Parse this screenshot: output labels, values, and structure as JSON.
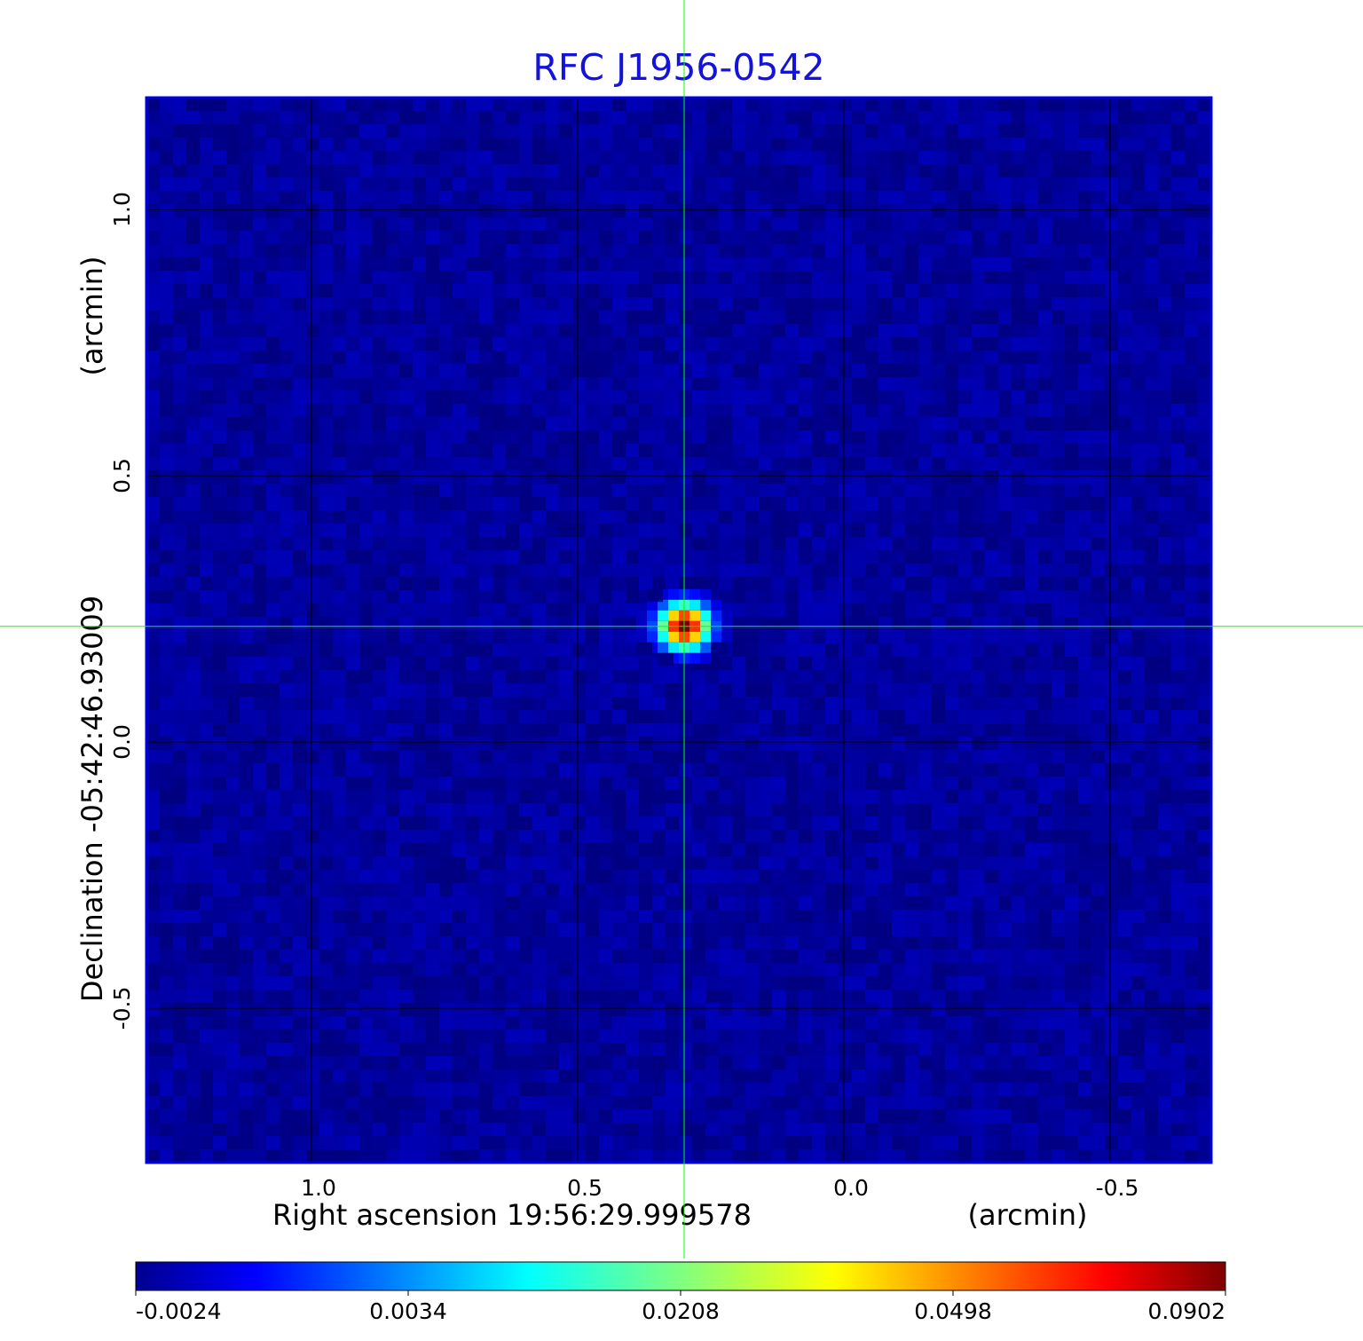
{
  "chart_data": {
    "type": "heatmap",
    "title": "RFC J1956-0542",
    "xlabel": "Right ascension  19:56:29.999578",
    "xlabel_unit": "(arcmin)",
    "ylabel": "Declination  -05:42:46.93009",
    "ylabel_unit": "(arcmin)",
    "xlim": [
      1.31,
      -0.69
    ],
    "ylim": [
      -0.79,
      1.21
    ],
    "x_ticks": [
      {
        "value": 1.0,
        "label": "1.0"
      },
      {
        "value": 0.5,
        "label": "0.5"
      },
      {
        "value": 0.0,
        "label": "0.0"
      },
      {
        "value": -0.5,
        "label": "-0.5"
      }
    ],
    "y_ticks": [
      {
        "value": 1.0,
        "label": "1.0"
      },
      {
        "value": 0.5,
        "label": "0.5"
      },
      {
        "value": 0.0,
        "label": "0.0"
      },
      {
        "value": -0.5,
        "label": "-0.5"
      }
    ],
    "grid": true,
    "crosshair": {
      "x": 0.3,
      "y": 0.217,
      "color": "#00ff00"
    },
    "background_value": 0.0,
    "source": {
      "x": 0.3,
      "y": 0.217,
      "peak": 0.0902
    },
    "colorbar": {
      "colormap": "jet",
      "min": -0.0024,
      "max": 0.0902,
      "tick_labels": [
        "-0.0024",
        "0.0034",
        "0.0208",
        "0.0498",
        "0.0902"
      ]
    },
    "colors": {
      "title": "#1313d9",
      "frame": "#0000dd",
      "grid": "#000000",
      "crosshair": "#00ff00"
    }
  }
}
